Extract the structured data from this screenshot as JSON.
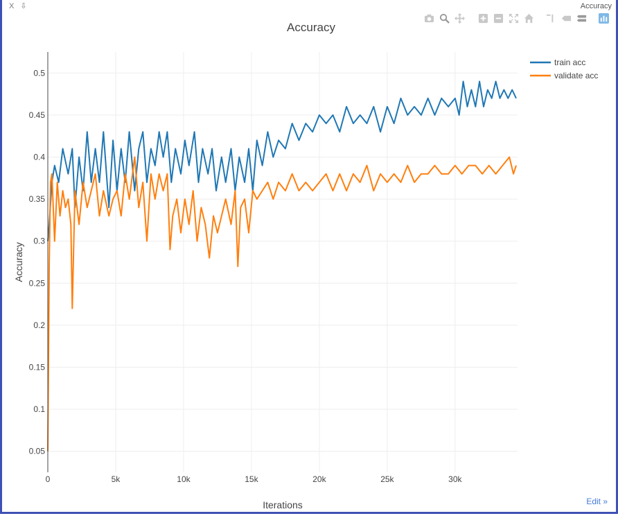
{
  "window": {
    "title": "Accuracy",
    "close_glyph": "X",
    "pin_glyph": "⇩",
    "edit_label": "Edit »"
  },
  "modebar": {
    "icons": [
      "camera-icon",
      "zoom-icon",
      "pan-icon",
      "zoom-in-icon",
      "zoom-out-icon",
      "autoscale-icon",
      "home-icon",
      "spike-lines-icon",
      "hover-closest-icon",
      "hover-compare-icon",
      "plotly-logo-icon"
    ]
  },
  "colors": {
    "train": "#1f77b4",
    "validate": "#ff7f0e",
    "grid": "#eeeeee",
    "axis": "#444444"
  },
  "chart_data": {
    "type": "line",
    "title": "Accuracy",
    "xlabel": "Iterations",
    "ylabel": "Accuracy",
    "xlim": [
      0,
      34600
    ],
    "ylim": [
      0.025,
      0.525
    ],
    "xticks": [
      0,
      5000,
      10000,
      15000,
      20000,
      25000,
      30000
    ],
    "xtick_labels": [
      "0",
      "5k",
      "10k",
      "15k",
      "20k",
      "25k",
      "30k"
    ],
    "yticks": [
      0.05,
      0.1,
      0.15,
      0.2,
      0.25,
      0.3,
      0.35,
      0.4,
      0.45,
      0.5
    ],
    "ytick_labels": [
      "0.05",
      "0.1",
      "0.15",
      "0.2",
      "0.25",
      "0.3",
      "0.35",
      "0.4",
      "0.45",
      "0.5"
    ],
    "grid": true,
    "legend_position": "top-right",
    "series": [
      {
        "name": "train acc",
        "x": [
          0,
          100,
          300,
          500,
          800,
          1100,
          1500,
          1800,
          2000,
          2300,
          2600,
          2900,
          3200,
          3500,
          3800,
          4100,
          4500,
          4800,
          5100,
          5400,
          5700,
          6000,
          6400,
          6700,
          7000,
          7300,
          7600,
          7900,
          8200,
          8500,
          8800,
          9100,
          9400,
          9800,
          10100,
          10400,
          10800,
          11100,
          11400,
          11800,
          12100,
          12400,
          12800,
          13100,
          13500,
          13800,
          14100,
          14500,
          14800,
          15100,
          15400,
          15800,
          16200,
          16600,
          17000,
          17500,
          18000,
          18500,
          19000,
          19500,
          20000,
          20500,
          21000,
          21500,
          22000,
          22500,
          23000,
          23500,
          24000,
          24500,
          25000,
          25500,
          26000,
          26500,
          27000,
          27500,
          28000,
          28500,
          29000,
          29500,
          30000,
          30300,
          30600,
          30900,
          31200,
          31500,
          31800,
          32100,
          32400,
          32700,
          33000,
          33300,
          33600,
          33900,
          34200,
          34500
        ],
        "values": [
          0.3,
          0.32,
          0.37,
          0.39,
          0.37,
          0.41,
          0.38,
          0.41,
          0.34,
          0.4,
          0.36,
          0.43,
          0.37,
          0.41,
          0.37,
          0.43,
          0.34,
          0.42,
          0.36,
          0.41,
          0.37,
          0.43,
          0.36,
          0.41,
          0.43,
          0.37,
          0.41,
          0.39,
          0.43,
          0.4,
          0.43,
          0.37,
          0.41,
          0.38,
          0.42,
          0.39,
          0.43,
          0.37,
          0.41,
          0.38,
          0.41,
          0.36,
          0.4,
          0.37,
          0.41,
          0.36,
          0.4,
          0.37,
          0.41,
          0.36,
          0.42,
          0.39,
          0.43,
          0.4,
          0.42,
          0.41,
          0.44,
          0.42,
          0.44,
          0.43,
          0.45,
          0.44,
          0.45,
          0.43,
          0.46,
          0.44,
          0.45,
          0.44,
          0.46,
          0.43,
          0.46,
          0.44,
          0.47,
          0.45,
          0.46,
          0.45,
          0.47,
          0.45,
          0.47,
          0.46,
          0.47,
          0.45,
          0.49,
          0.46,
          0.48,
          0.46,
          0.49,
          0.46,
          0.48,
          0.47,
          0.49,
          0.47,
          0.48,
          0.47,
          0.48,
          0.47
        ]
      },
      {
        "name": "validate acc",
        "x": [
          0,
          100,
          200,
          300,
          500,
          700,
          900,
          1100,
          1300,
          1500,
          1700,
          1800,
          2000,
          2300,
          2600,
          2900,
          3200,
          3500,
          3800,
          4100,
          4500,
          4800,
          5100,
          5400,
          5700,
          6000,
          6400,
          6700,
          7000,
          7300,
          7600,
          7900,
          8200,
          8500,
          8800,
          9000,
          9200,
          9500,
          9800,
          10100,
          10400,
          10700,
          11000,
          11300,
          11600,
          11900,
          12200,
          12500,
          12800,
          13100,
          13500,
          13800,
          14000,
          14200,
          14500,
          14800,
          15100,
          15400,
          15800,
          16200,
          16600,
          17000,
          17500,
          18000,
          18500,
          19000,
          19500,
          20000,
          20500,
          21000,
          21500,
          22000,
          22500,
          23000,
          23500,
          24000,
          24500,
          25000,
          25500,
          26000,
          26500,
          27000,
          27500,
          28000,
          28500,
          29000,
          29500,
          30000,
          30500,
          31000,
          31500,
          32000,
          32500,
          33000,
          33500,
          34000,
          34300,
          34500
        ],
        "values": [
          0.05,
          0.27,
          0.37,
          0.38,
          0.3,
          0.37,
          0.33,
          0.36,
          0.34,
          0.35,
          0.32,
          0.22,
          0.36,
          0.32,
          0.37,
          0.34,
          0.36,
          0.38,
          0.33,
          0.36,
          0.33,
          0.35,
          0.36,
          0.33,
          0.38,
          0.35,
          0.4,
          0.34,
          0.37,
          0.3,
          0.38,
          0.35,
          0.38,
          0.36,
          0.38,
          0.29,
          0.33,
          0.35,
          0.31,
          0.35,
          0.32,
          0.36,
          0.3,
          0.34,
          0.32,
          0.28,
          0.33,
          0.31,
          0.33,
          0.35,
          0.32,
          0.36,
          0.27,
          0.34,
          0.35,
          0.31,
          0.36,
          0.35,
          0.36,
          0.37,
          0.35,
          0.37,
          0.36,
          0.38,
          0.36,
          0.37,
          0.36,
          0.37,
          0.38,
          0.36,
          0.38,
          0.36,
          0.38,
          0.37,
          0.39,
          0.36,
          0.38,
          0.37,
          0.38,
          0.37,
          0.39,
          0.37,
          0.38,
          0.38,
          0.39,
          0.38,
          0.38,
          0.39,
          0.38,
          0.39,
          0.39,
          0.38,
          0.39,
          0.38,
          0.39,
          0.4,
          0.38,
          0.39
        ]
      }
    ]
  }
}
